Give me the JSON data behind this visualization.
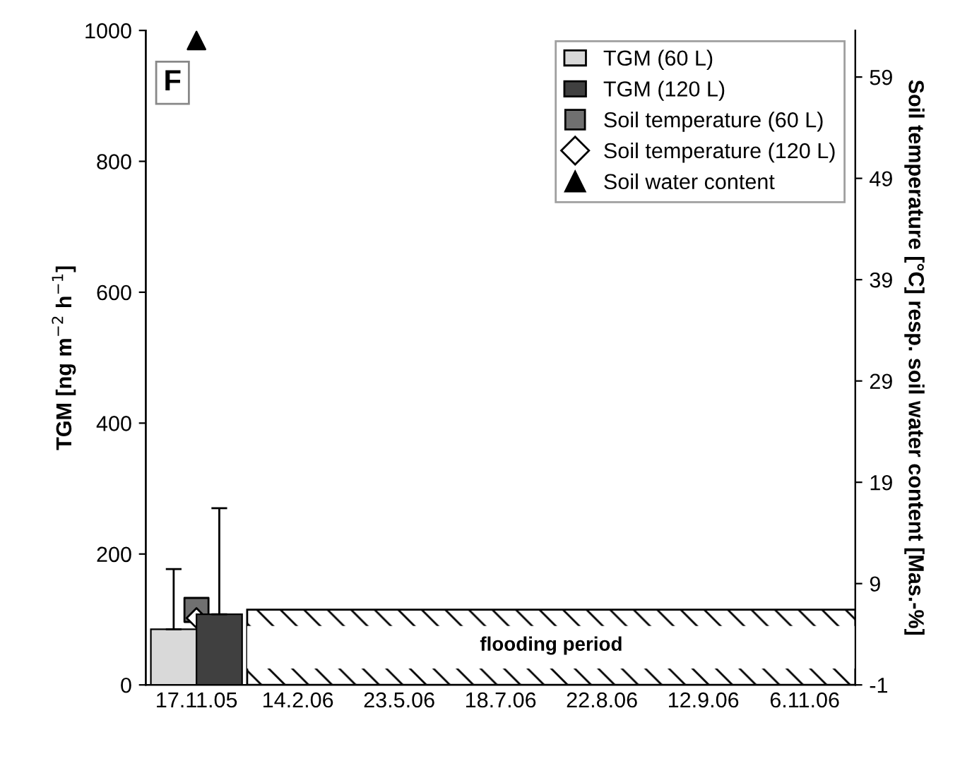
{
  "chart_data": {
    "type": "bar",
    "categories": [
      "17.11.05",
      "14.2.06",
      "23.5.06",
      "18.7.06",
      "22.8.06",
      "12.9.06",
      "6.11.06"
    ],
    "ylabel": "TGM [ng m$^{−2}$ h$^{−1}$]",
    "y2label": "Soil temperature [°C] resp. soil water content [Mas.-%]",
    "ylim": [
      0,
      1000
    ],
    "yticks": [
      0,
      200,
      400,
      600,
      800,
      1000
    ],
    "y2lim": [
      -1,
      63.6
    ],
    "y2ticks": [
      -1,
      9,
      19,
      29,
      39,
      49,
      59
    ],
    "series": [
      {
        "name": "TGM (60 L)",
        "color": "#d9d9d9",
        "values": [
          85,
          null,
          null,
          null,
          null,
          null,
          null
        ],
        "errors": [
          92,
          null,
          null,
          null,
          null,
          null,
          null
        ]
      },
      {
        "name": "TGM (120 L)",
        "color": "#404040",
        "values": [
          108,
          null,
          null,
          null,
          null,
          null,
          null
        ],
        "errors": [
          162,
          null,
          null,
          null,
          null,
          null,
          null
        ]
      },
      {
        "name": "Soil temperature (60 L)",
        "type": "scatter",
        "axis": "y2",
        "marker": "square",
        "color": "#707070",
        "values": [
          6.4,
          null,
          null,
          null,
          null,
          null,
          null
        ]
      },
      {
        "name": "Soil temperature (120 L)",
        "type": "scatter",
        "axis": "y2",
        "marker": "diamond",
        "color": "#ffffff",
        "values": [
          5.6,
          null,
          null,
          null,
          null,
          null,
          null
        ]
      },
      {
        "name": "Soil water content",
        "type": "scatter",
        "axis": "y2",
        "marker": "triangle",
        "color": "#000000",
        "values": [
          62.6,
          null,
          null,
          null,
          null,
          null,
          null
        ]
      }
    ],
    "annotations": [
      "F",
      "flooding period"
    ],
    "legend": "top right",
    "grid": false
  }
}
